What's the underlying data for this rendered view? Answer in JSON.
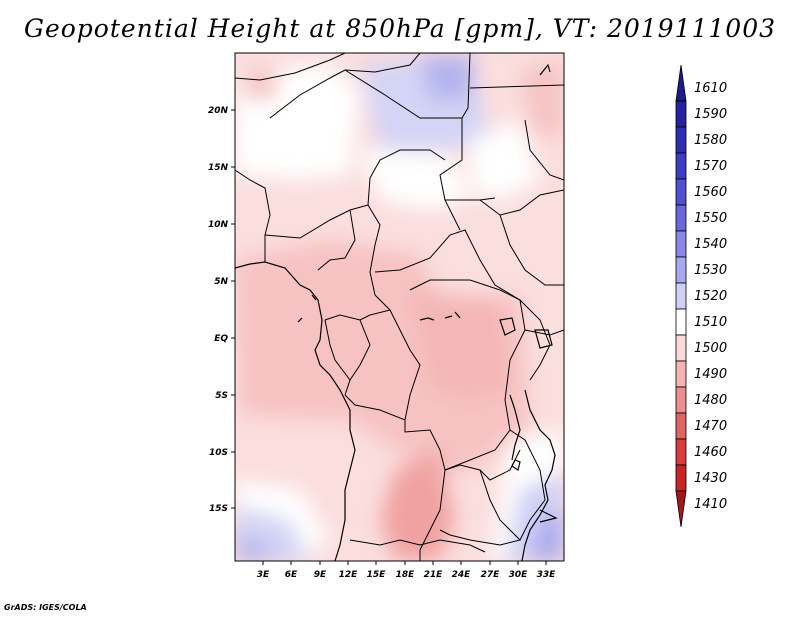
{
  "title": "Geopotential Height at 850hPa [gpm], VT: 2019111003",
  "footer": "GrADS: IGES/COLA",
  "map": {
    "lat_labels": [
      "20N",
      "15N",
      "10N",
      "5N",
      "EQ",
      "5S",
      "10S",
      "15S"
    ],
    "lon_labels": [
      "3E",
      "6E",
      "9E",
      "12E",
      "15E",
      "18E",
      "21E",
      "24E",
      "27E",
      "30E",
      "33E"
    ]
  },
  "colorbar": {
    "levels": [
      "1610",
      "1590",
      "1580",
      "1570",
      "1560",
      "1550",
      "1540",
      "1530",
      "1520",
      "1510",
      "1500",
      "1490",
      "1480",
      "1470",
      "1460",
      "1430",
      "1410"
    ],
    "colors": [
      "#1d1a8a",
      "#2522a0",
      "#2f2db4",
      "#3d3cc4",
      "#5150d2",
      "#6967dc",
      "#8887e6",
      "#a8a8ee",
      "#cfd0f6",
      "#ffffff",
      "#fbd9d9",
      "#f4b4b4",
      "#ea8e8e",
      "#e06464",
      "#d83c3c",
      "#c82424",
      "#a51818"
    ]
  }
}
